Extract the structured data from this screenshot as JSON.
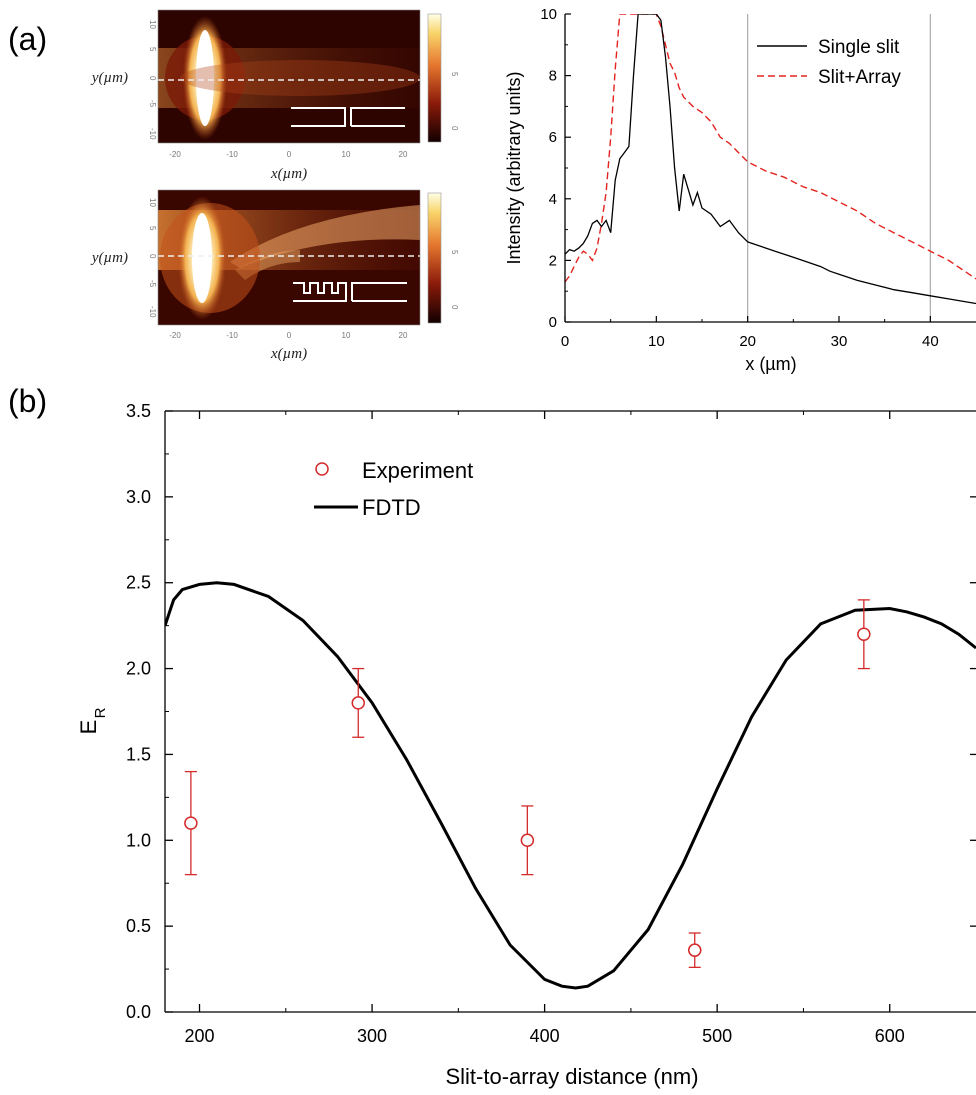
{
  "panel_labels": {
    "a": "(a)",
    "b": "(b)"
  },
  "colors": {
    "single_slit": "#000000",
    "slit_array": "#e3231f",
    "experiment": "#d42a2a",
    "fdtd": "#000000",
    "vline": "#aaaaaa"
  },
  "maps": [
    {
      "xlabel": "x(µm)",
      "ylabel": "y(µm)",
      "xticks": [
        "-20",
        "-10",
        "0",
        "10",
        "20"
      ],
      "yticks": [
        "10",
        "5",
        "0",
        "-5",
        "-10"
      ],
      "cbar_ticks": [
        "5",
        "0"
      ],
      "inset": "single-slit"
    },
    {
      "xlabel": "x(µm)",
      "ylabel": "y(µm)",
      "xticks": [
        "-20",
        "-10",
        "0",
        "10",
        "20"
      ],
      "yticks": [
        "10",
        "5",
        "0",
        "-5",
        "-10"
      ],
      "cbar_ticks": [
        "5",
        "0"
      ],
      "inset": "slit-plus-array"
    }
  ],
  "chart_data": [
    {
      "type": "line",
      "xlabel": "x (µm)",
      "ylabel": "Intensity (arbitrary units)",
      "xlim": [
        0,
        45
      ],
      "ylim": [
        0,
        10
      ],
      "xticks": [
        0,
        10,
        20,
        30,
        40
      ],
      "yticks": [
        0,
        2,
        4,
        6,
        8,
        10
      ],
      "vlines": [
        20,
        40
      ],
      "legend_position": "top-right",
      "series": [
        {
          "name": "Single slit",
          "style": "solid",
          "x": [
            0,
            0.5,
            1,
            1.5,
            2,
            2.5,
            3,
            3.5,
            4,
            4.5,
            5,
            5.5,
            6,
            6.5,
            7,
            7.5,
            8,
            8.5,
            9,
            9.5,
            10,
            10.5,
            11,
            11.5,
            12,
            12.5,
            13,
            13.5,
            14,
            14.5,
            15,
            16,
            17,
            18,
            19,
            20,
            21,
            22,
            23,
            24,
            25,
            26,
            27,
            28,
            29,
            30,
            32,
            34,
            36,
            38,
            40,
            42,
            44,
            45
          ],
          "y": [
            2.2,
            2.35,
            2.3,
            2.4,
            2.55,
            2.8,
            3.2,
            3.3,
            3.1,
            3.3,
            2.9,
            4.6,
            5.3,
            5.5,
            5.7,
            8.0,
            10.0,
            10.0,
            10.0,
            10.0,
            10.0,
            9.8,
            8.6,
            7.0,
            5.0,
            3.6,
            4.8,
            4.3,
            3.8,
            4.2,
            3.7,
            3.5,
            3.1,
            3.3,
            2.9,
            2.6,
            2.5,
            2.4,
            2.3,
            2.2,
            2.1,
            2.0,
            1.9,
            1.8,
            1.65,
            1.55,
            1.35,
            1.2,
            1.05,
            0.95,
            0.85,
            0.75,
            0.65,
            0.6
          ]
        },
        {
          "name": "Slit+Array",
          "style": "dashed",
          "x": [
            0,
            0.5,
            1,
            1.5,
            2,
            2.5,
            3,
            3.5,
            4,
            4.5,
            5,
            5.5,
            6,
            6.5,
            7,
            7.5,
            8,
            8.5,
            9,
            9.5,
            10,
            10.5,
            11,
            11.5,
            12,
            12.5,
            13,
            14,
            15,
            16,
            17,
            18,
            19,
            20,
            22,
            24,
            26,
            28,
            30,
            32,
            34,
            36,
            38,
            40,
            42,
            44,
            45
          ],
          "y": [
            1.3,
            1.5,
            1.8,
            2.1,
            2.3,
            2.2,
            2.0,
            2.4,
            3.2,
            4.2,
            6.0,
            8.2,
            10.0,
            10.0,
            10.0,
            10.0,
            10.0,
            10.0,
            10.0,
            10.0,
            10.0,
            9.6,
            9.0,
            8.4,
            8.1,
            7.6,
            7.3,
            7.0,
            6.8,
            6.5,
            6.0,
            5.8,
            5.5,
            5.2,
            4.9,
            4.7,
            4.4,
            4.2,
            3.9,
            3.6,
            3.2,
            2.9,
            2.6,
            2.3,
            2.0,
            1.6,
            1.4
          ]
        }
      ]
    },
    {
      "type": "scatter",
      "xlabel": "Slit-to-array distance (nm)",
      "ylabel": "E",
      "ylabel_sub": "R",
      "xlim": [
        180,
        650
      ],
      "ylim": [
        0,
        3.5
      ],
      "xticks": [
        200,
        300,
        400,
        500,
        600
      ],
      "yticks": [
        0.0,
        0.5,
        1.0,
        1.5,
        2.0,
        2.5,
        3.0,
        3.5
      ],
      "ytick_labels": [
        "0.0",
        "0.5",
        "1.0",
        "1.5",
        "2.0",
        "2.5",
        "3.0",
        "3.5"
      ],
      "legend_position": "top-left",
      "series": [
        {
          "name": "Experiment",
          "kind": "points-with-errorbars",
          "x": [
            195,
            292,
            390,
            487,
            585
          ],
          "y": [
            1.1,
            1.8,
            1.0,
            0.36,
            2.2
          ],
          "err": [
            0.3,
            0.2,
            0.2,
            0.1,
            0.2
          ]
        },
        {
          "name": "FDTD",
          "kind": "line",
          "x": [
            180,
            185,
            190,
            200,
            210,
            220,
            240,
            260,
            280,
            300,
            320,
            340,
            360,
            380,
            400,
            410,
            418,
            425,
            440,
            460,
            480,
            500,
            520,
            540,
            560,
            580,
            600,
            610,
            620,
            630,
            640,
            650
          ],
          "y": [
            2.25,
            2.4,
            2.46,
            2.49,
            2.5,
            2.49,
            2.42,
            2.28,
            2.07,
            1.8,
            1.47,
            1.1,
            0.72,
            0.39,
            0.19,
            0.15,
            0.14,
            0.15,
            0.24,
            0.48,
            0.86,
            1.3,
            1.72,
            2.05,
            2.26,
            2.34,
            2.35,
            2.33,
            2.3,
            2.26,
            2.2,
            2.12
          ]
        }
      ]
    }
  ]
}
